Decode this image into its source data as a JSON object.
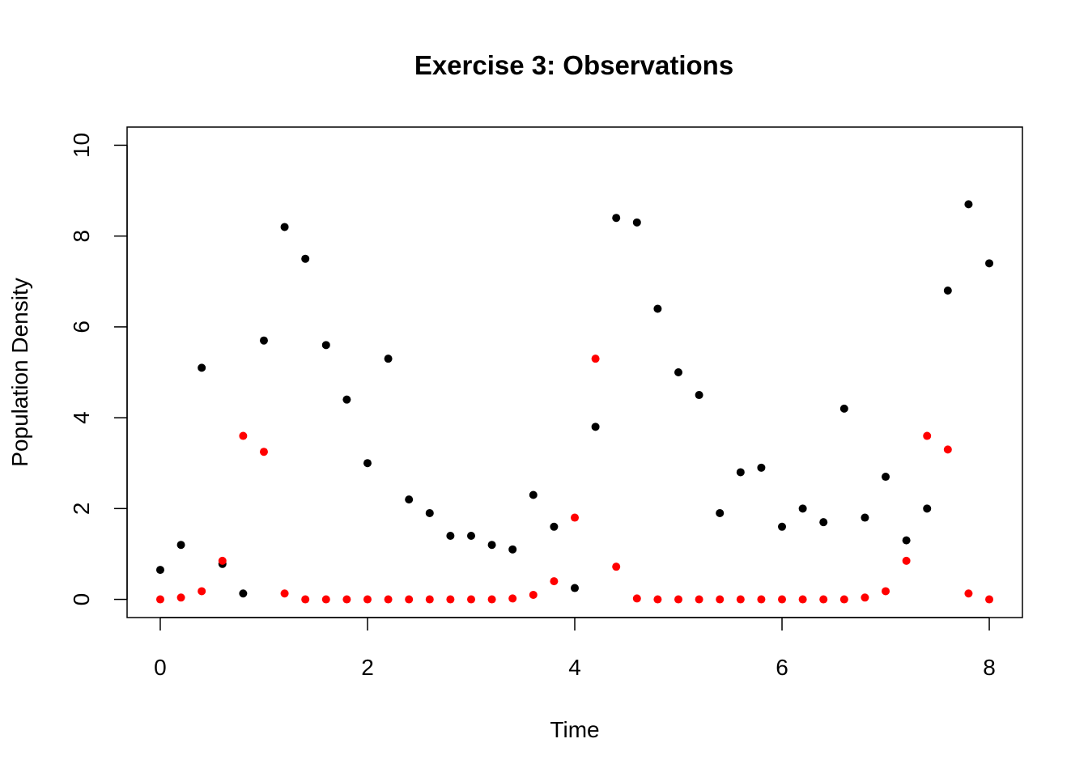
{
  "chart_data": {
    "type": "scatter",
    "title": "Exercise 3: Observations",
    "xlabel": "Time",
    "ylabel": "Population Density",
    "xlim": [
      -0.32,
      8.32
    ],
    "ylim": [
      -0.4,
      10.4
    ],
    "x_ticks": [
      0,
      2,
      4,
      6,
      8
    ],
    "y_ticks": [
      0,
      2,
      4,
      6,
      8,
      10
    ],
    "grid": false,
    "legend": "none",
    "x": [
      0,
      0.2,
      0.4,
      0.6,
      0.8,
      1.0,
      1.2,
      1.4,
      1.6,
      1.8,
      2.0,
      2.2,
      2.4,
      2.6,
      2.8,
      3.0,
      3.2,
      3.4,
      3.6,
      3.8,
      4.0,
      4.2,
      4.4,
      4.6,
      4.8,
      5.0,
      5.2,
      5.4,
      5.6,
      5.8,
      6.0,
      6.2,
      6.4,
      6.6,
      6.8,
      7.0,
      7.2,
      7.4,
      7.6,
      7.8,
      8.0
    ],
    "series": [
      {
        "color": "#000000",
        "values": [
          0.65,
          1.2,
          5.1,
          0.78,
          0.13,
          5.7,
          8.2,
          7.5,
          5.6,
          4.4,
          3.0,
          5.3,
          2.2,
          1.9,
          1.4,
          1.4,
          1.2,
          1.1,
          2.3,
          1.6,
          0.25,
          3.8,
          8.4,
          8.3,
          6.4,
          5.0,
          4.5,
          1.9,
          2.8,
          2.9,
          1.6,
          2.0,
          1.7,
          4.2,
          1.8,
          2.7,
          1.3,
          2.0,
          6.8,
          8.7,
          7.4
        ]
      },
      {
        "color": "#ff0000",
        "values": [
          0.0,
          0.04,
          0.18,
          0.85,
          3.6,
          3.25,
          0.13,
          0.0,
          0.0,
          0.0,
          0.0,
          0.0,
          0.0,
          0.0,
          0.0,
          0.0,
          0.0,
          0.02,
          0.1,
          0.4,
          1.8,
          5.3,
          0.72,
          0.02,
          0.0,
          0.0,
          0.0,
          0.0,
          0.0,
          0.0,
          0.0,
          0.0,
          0.0,
          0.0,
          0.04,
          0.18,
          0.85,
          3.6,
          3.3,
          0.13,
          0.0
        ]
      }
    ]
  }
}
